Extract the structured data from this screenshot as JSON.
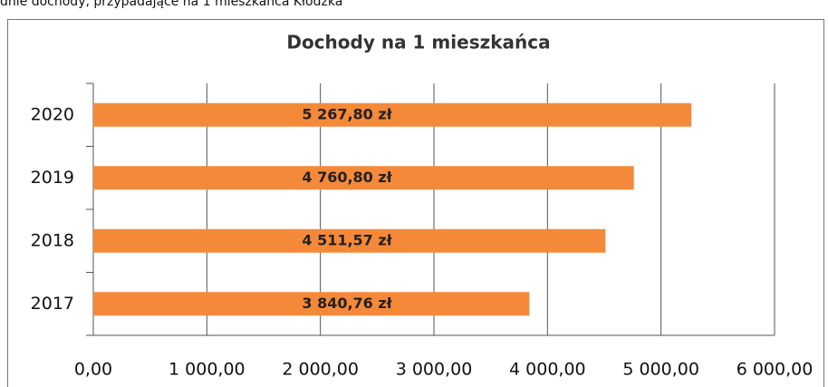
{
  "chart_data": {
    "type": "bar",
    "orientation": "horizontal",
    "caption": "dnie dochody, przypadające na 1 mieszkańca Kłodzka",
    "title": "Dochody na 1 mieszkańca",
    "categories": [
      "2020",
      "2019",
      "2018",
      "2017"
    ],
    "values": [
      5267.8,
      4760.8,
      4511.57,
      3840.76
    ],
    "value_labels": [
      "5 267,80 zł",
      "4 760,80 zł",
      "4 511,57 zł",
      "3 840,76 zł"
    ],
    "color": "#f5893a",
    "xlim": [
      0,
      6000
    ],
    "xticks": [
      {
        "value": 0,
        "label": "0,00"
      },
      {
        "value": 1000,
        "label": "1 000,00"
      },
      {
        "value": 2000,
        "label": "2 000,00"
      },
      {
        "value": 3000,
        "label": "3 000,00"
      },
      {
        "value": 4000,
        "label": "4 000,00"
      },
      {
        "value": 5000,
        "label": "5 000,00"
      },
      {
        "value": 6000,
        "label": "6 000,00"
      }
    ],
    "grid": true
  }
}
